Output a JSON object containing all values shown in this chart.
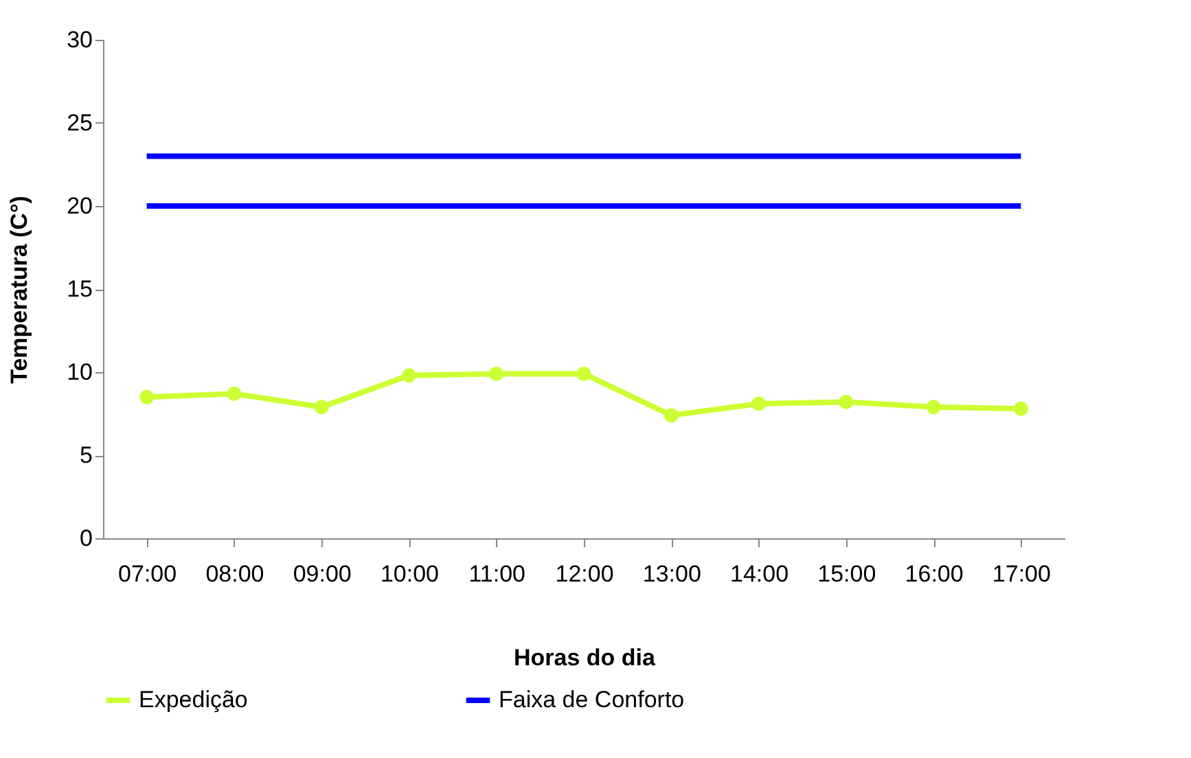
{
  "chart_data": {
    "type": "line",
    "xlabel": "Horas do  dia",
    "ylabel": "Temperatura (C°)",
    "categories": [
      "07:00",
      "08:00",
      "09:00",
      "10:00",
      "11:00",
      "12:00",
      "13:00",
      "14:00",
      "15:00",
      "16:00",
      "17:00"
    ],
    "series": [
      {
        "name": "Expedição",
        "color": "#ccff33",
        "marker": "circle",
        "values": [
          8.5,
          8.7,
          7.9,
          9.8,
          9.9,
          9.9,
          7.4,
          8.1,
          8.2,
          7.9,
          7.8
        ]
      },
      {
        "name": "Faixa de Conforto",
        "color": "#0000ff",
        "marker": "none",
        "values": [
          23,
          23,
          23,
          23,
          23,
          23,
          23,
          23,
          23,
          23,
          23
        ]
      },
      {
        "color": "#0000ff",
        "marker": "none",
        "values": [
          20,
          20,
          20,
          20,
          20,
          20,
          20,
          20,
          20,
          20,
          20
        ]
      }
    ],
    "ylim": [
      0,
      30
    ],
    "yticks": [
      0,
      5,
      10,
      15,
      20,
      25,
      30
    ],
    "grid": false,
    "legend": "bottom",
    "line_style": "solid"
  }
}
